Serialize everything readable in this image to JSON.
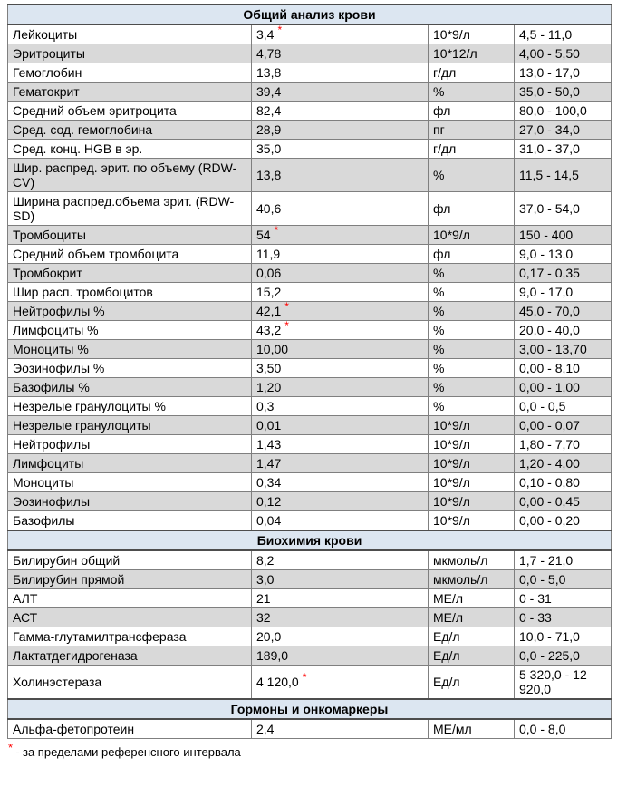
{
  "colors": {
    "section_header_bg": "#dce6f1",
    "row_bg": "#ffffff",
    "row_alt_bg": "#d9d9d9",
    "border": "#7f7f7f",
    "section_border": "#4d4d4d",
    "flag": "#ff0000",
    "text": "#000000"
  },
  "table": {
    "columns": [
      "parameter",
      "value",
      "extra",
      "unit",
      "reference_range"
    ],
    "sections": [
      {
        "title": "Общий анализ крови",
        "rows": [
          {
            "name": "Лейкоциты",
            "value": "3,4",
            "flag": "*",
            "extra": "",
            "unit": "10*9/л",
            "range": "4,5 - 11,0"
          },
          {
            "name": "Эритроциты",
            "value": "4,78",
            "flag": "",
            "extra": "",
            "unit": "10*12/л",
            "range": "4,00 - 5,50"
          },
          {
            "name": "Гемоглобин",
            "value": "13,8",
            "flag": "",
            "extra": "",
            "unit": "г/дл",
            "range": "13,0 - 17,0"
          },
          {
            "name": "Гематокрит",
            "value": "39,4",
            "flag": "",
            "extra": "",
            "unit": "%",
            "range": "35,0 - 50,0"
          },
          {
            "name": "Средний объем эритроцита",
            "value": "82,4",
            "flag": "",
            "extra": "",
            "unit": "фл",
            "range": "80,0 - 100,0"
          },
          {
            "name": "Сред. сод. гемоглобина",
            "value": "28,9",
            "flag": "",
            "extra": "",
            "unit": "пг",
            "range": "27,0 - 34,0"
          },
          {
            "name": "Сред. конц. HGB в эр.",
            "value": "35,0",
            "flag": "",
            "extra": "",
            "unit": "г/дл",
            "range": "31,0 - 37,0"
          },
          {
            "name": "Шир. распред. эрит. по объему (RDW-CV)",
            "value": "13,8",
            "flag": "",
            "extra": "",
            "unit": "%",
            "range": "11,5 - 14,5"
          },
          {
            "name": "Ширина распред.объема эрит. (RDW-SD)",
            "value": "40,6",
            "flag": "",
            "extra": "",
            "unit": "фл",
            "range": "37,0 - 54,0"
          },
          {
            "name": "Тромбоциты",
            "value": "54",
            "flag": "*",
            "extra": "",
            "unit": "10*9/л",
            "range": "150 - 400"
          },
          {
            "name": "Средний объем тромбоцита",
            "value": "11,9",
            "flag": "",
            "extra": "",
            "unit": "фл",
            "range": "9,0 - 13,0"
          },
          {
            "name": "Тромбокрит",
            "value": "0,06",
            "flag": "",
            "extra": "",
            "unit": "%",
            "range": "0,17 - 0,35"
          },
          {
            "name": "Шир расп. тромбоцитов",
            "value": "15,2",
            "flag": "",
            "extra": "",
            "unit": "%",
            "range": "9,0 - 17,0"
          },
          {
            "name": "Нейтрофилы %",
            "value": "42,1",
            "flag": "*",
            "extra": "",
            "unit": "%",
            "range": "45,0 - 70,0"
          },
          {
            "name": "Лимфоциты %",
            "value": "43,2",
            "flag": "*",
            "extra": "",
            "unit": "%",
            "range": "20,0 - 40,0"
          },
          {
            "name": "Моноциты %",
            "value": "10,00",
            "flag": "",
            "extra": "",
            "unit": "%",
            "range": "3,00 - 13,70"
          },
          {
            "name": "Эозинофилы %",
            "value": "3,50",
            "flag": "",
            "extra": "",
            "unit": "%",
            "range": "0,00 - 8,10"
          },
          {
            "name": "Базофилы %",
            "value": "1,20",
            "flag": "",
            "extra": "",
            "unit": "%",
            "range": "0,00 - 1,00"
          },
          {
            "name": "Незрелые гранулоциты %",
            "value": "0,3",
            "flag": "",
            "extra": "",
            "unit": "%",
            "range": "0,0 - 0,5"
          },
          {
            "name": "Незрелые гранулоциты",
            "value": "0,01",
            "flag": "",
            "extra": "",
            "unit": "10*9/л",
            "range": "0,00 - 0,07"
          },
          {
            "name": "Нейтрофилы",
            "value": "1,43",
            "flag": "",
            "extra": "",
            "unit": "10*9/л",
            "range": "1,80 - 7,70"
          },
          {
            "name": "Лимфоциты",
            "value": "1,47",
            "flag": "",
            "extra": "",
            "unit": "10*9/л",
            "range": "1,20 - 4,00"
          },
          {
            "name": "Моноциты",
            "value": "0,34",
            "flag": "",
            "extra": "",
            "unit": "10*9/л",
            "range": "0,10 - 0,80"
          },
          {
            "name": "Эозинофилы",
            "value": "0,12",
            "flag": "",
            "extra": "",
            "unit": "10*9/л",
            "range": "0,00 - 0,45"
          },
          {
            "name": "Базофилы",
            "value": "0,04",
            "flag": "",
            "extra": "",
            "unit": "10*9/л",
            "range": "0,00 - 0,20"
          }
        ]
      },
      {
        "title": "Биохимия крови",
        "rows": [
          {
            "name": "Билирубин общий",
            "value": "8,2",
            "flag": "",
            "extra": "",
            "unit": "мкмоль/л",
            "range": "1,7 - 21,0"
          },
          {
            "name": "Билирубин прямой",
            "value": "3,0",
            "flag": "",
            "extra": "",
            "unit": "мкмоль/л",
            "range": "0,0 - 5,0"
          },
          {
            "name": "АЛТ",
            "value": "21",
            "flag": "",
            "extra": "",
            "unit": "МЕ/л",
            "range": "0 - 31"
          },
          {
            "name": "АСТ",
            "value": "32",
            "flag": "",
            "extra": "",
            "unit": "МЕ/л",
            "range": "0 - 33"
          },
          {
            "name": "Гамма-глутамилтрансфераза",
            "value": "20,0",
            "flag": "",
            "extra": "",
            "unit": "Ед/л",
            "range": "10,0 - 71,0"
          },
          {
            "name": "Лактатдегидрогеназа",
            "value": "189,0",
            "flag": "",
            "extra": "",
            "unit": "Ед/л",
            "range": "0,0 - 225,0"
          },
          {
            "name": "Холинэстераза",
            "value": "4 120,0",
            "flag": "*",
            "extra": "",
            "unit": "Ед/л",
            "range": "5 320,0 - 12 920,0"
          }
        ]
      },
      {
        "title": "Гормоны и онкомаркеры",
        "rows": [
          {
            "name": "Альфа-фетопротеин",
            "value": "2,4",
            "flag": "",
            "extra": "",
            "unit": "МЕ/мл",
            "range": "0,0 - 8,0"
          }
        ]
      }
    ]
  },
  "footnote": {
    "marker": "*",
    "text": "- за пределами референсного интервала"
  }
}
